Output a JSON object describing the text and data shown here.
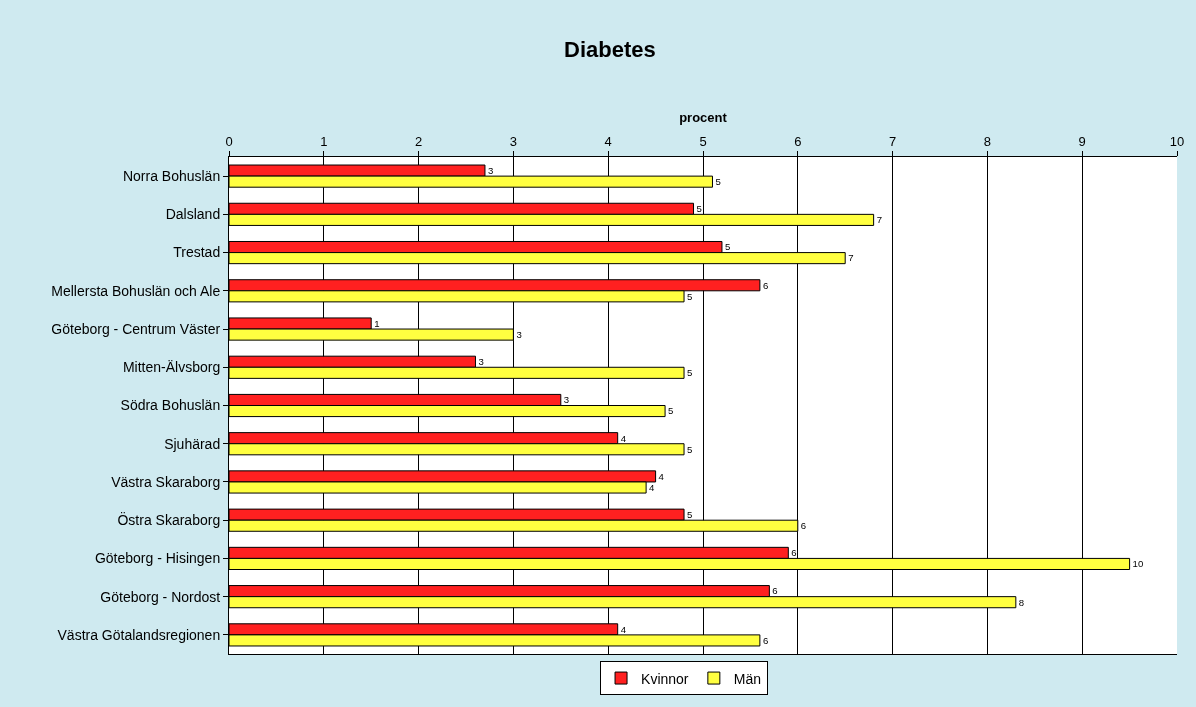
{
  "chart_data": {
    "type": "bar",
    "orientation": "horizontal",
    "title": "Diabetes",
    "xlabel": "procent",
    "categories": [
      "Norra Bohuslän",
      "Dalsland",
      "Trestad",
      "Mellersta Bohuslän och Ale",
      "Göteborg - Centrum Väster",
      "Mitten-Älvsborg",
      "Södra Bohuslän",
      "Sjuhärad",
      "Västra Skaraborg",
      "Östra Skaraborg",
      "Göteborg - Hisingen",
      "Göteborg - Nordost",
      "Västra Götalandsregionen"
    ],
    "series": [
      {
        "name": "Kvinnor",
        "color": "#ff2020",
        "values": [
          2.7,
          4.9,
          5.2,
          5.6,
          1.5,
          2.6,
          3.5,
          4.1,
          4.5,
          4.8,
          5.9,
          5.7,
          4.1
        ],
        "value_labels": [
          "3",
          "5",
          "5",
          "6",
          "1",
          "3",
          "3",
          "4",
          "4",
          "5",
          "6",
          "6",
          "4"
        ]
      },
      {
        "name": "Män",
        "color": "#ffff40",
        "values": [
          5.1,
          6.8,
          6.5,
          4.8,
          3.0,
          4.8,
          4.6,
          4.8,
          4.4,
          6.0,
          9.5,
          8.3,
          5.6
        ],
        "value_labels": [
          "5",
          "7",
          "7",
          "5",
          "3",
          "5",
          "5",
          "5",
          "4",
          "6",
          "10",
          "8",
          "6"
        ]
      }
    ],
    "xlim": [
      0,
      10
    ],
    "xticks": [
      0,
      1,
      2,
      3,
      4,
      5,
      6,
      7,
      8,
      9,
      10
    ],
    "grid": "x",
    "legend": "bottom"
  }
}
